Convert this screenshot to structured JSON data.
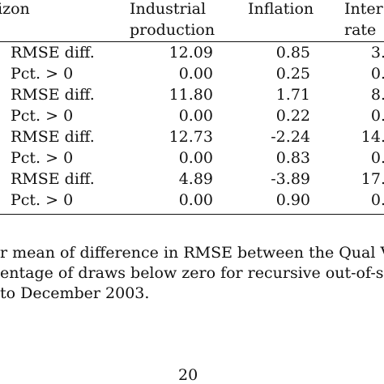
{
  "table": {
    "header": {
      "horizon": "izon",
      "industrial_line1": "Industrial",
      "industrial_line2": "production",
      "inflation": "Inflation",
      "interest_line1": "Inter",
      "interest_line2": "rate"
    },
    "rows": [
      {
        "label": "RMSE diff.",
        "industrial": "12.09",
        "inflation": "0.85",
        "interest": "3."
      },
      {
        "label": "Pct. > 0",
        "industrial": "0.00",
        "inflation": "0.25",
        "interest": "0."
      },
      {
        "label": "RMSE diff.",
        "industrial": "11.80",
        "inflation": "1.71",
        "interest": "8."
      },
      {
        "label": "Pct. > 0",
        "industrial": "0.00",
        "inflation": "0.22",
        "interest": "0."
      },
      {
        "label": "RMSE diff.",
        "industrial": "12.73",
        "inflation": "-2.24",
        "interest": "14."
      },
      {
        "label": "Pct. > 0",
        "industrial": "0.00",
        "inflation": "0.83",
        "interest": "0."
      },
      {
        "label": "RMSE diff.",
        "industrial": "4.89",
        "inflation": "-3.89",
        "interest": "17."
      },
      {
        "label": "Pct. > 0",
        "industrial": "0.00",
        "inflation": "0.90",
        "interest": "0."
      }
    ]
  },
  "footnote": {
    "line1": "r mean of difference in RMSE between the Qual VAR a",
    "line2": "entage of draws below zero for recursive out-of-sample",
    "line3": "to December 2003."
  },
  "page_number": "20"
}
